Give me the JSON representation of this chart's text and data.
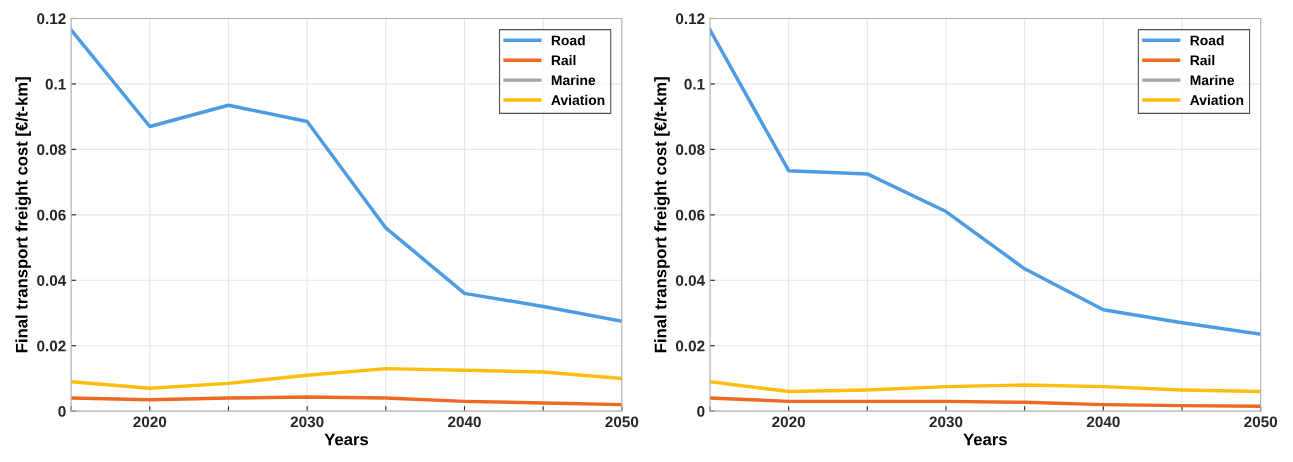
{
  "chart_data": [
    {
      "type": "line",
      "xlabel": "Years",
      "ylabel": "Final transport freight cost [€/t-km]",
      "x": [
        2015,
        2020,
        2025,
        2030,
        2035,
        2040,
        2045,
        2050
      ],
      "series": [
        {
          "name": "Road",
          "color": "#4d9be0",
          "values": [
            0.1165,
            0.087,
            0.0935,
            0.0885,
            0.056,
            0.036,
            0.032,
            0.0275
          ]
        },
        {
          "name": "Rail",
          "color": "#ee6a24",
          "values": [
            0.004,
            0.0035,
            0.004,
            0.0043,
            0.004,
            0.003,
            0.0025,
            0.002
          ]
        },
        {
          "name": "Marine",
          "color": "#a5a5a5",
          "values": [
            null,
            null,
            null,
            null,
            null,
            null,
            null,
            null
          ]
        },
        {
          "name": "Aviation",
          "color": "#fcbd0c",
          "values": [
            0.009,
            0.007,
            0.0085,
            0.011,
            0.013,
            0.0125,
            0.012,
            0.01
          ]
        }
      ],
      "xlim": [
        2015,
        2050
      ],
      "ylim": [
        0,
        0.12
      ],
      "xticks": [
        {
          "value": 2015,
          "label": null
        },
        2020,
        {
          "value": 2025,
          "label": null
        },
        2030,
        {
          "value": 2035,
          "label": null
        },
        2040,
        {
          "value": 2045,
          "label": null
        },
        2050
      ],
      "yticks": [
        0,
        0.02,
        0.04,
        0.06,
        0.08,
        0.1,
        0.12
      ],
      "grid": true,
      "legend": "top right",
      "marker": "none",
      "line_style": "solid"
    },
    {
      "type": "line",
      "xlabel": "Years",
      "ylabel": "Final transport freight cost [€/t-km]",
      "x": [
        2015,
        2020,
        2025,
        2030,
        2035,
        2040,
        2045,
        2050
      ],
      "series": [
        {
          "name": "Road",
          "color": "#4d9be0",
          "values": [
            0.1165,
            0.0735,
            0.0725,
            0.061,
            0.0435,
            0.031,
            0.027,
            0.0235
          ]
        },
        {
          "name": "Rail",
          "color": "#ee6a24",
          "values": [
            0.004,
            0.003,
            0.003,
            0.003,
            0.0027,
            0.002,
            0.0017,
            0.0015
          ]
        },
        {
          "name": "Marine",
          "color": "#a5a5a5",
          "values": [
            null,
            null,
            null,
            null,
            null,
            null,
            null,
            null
          ]
        },
        {
          "name": "Aviation",
          "color": "#fcbd0c",
          "values": [
            0.009,
            0.006,
            0.0065,
            0.0075,
            0.008,
            0.0075,
            0.0065,
            0.006
          ]
        }
      ],
      "xlim": [
        2015,
        2050
      ],
      "ylim": [
        0,
        0.12
      ],
      "xticks": [
        {
          "value": 2015,
          "label": null
        },
        2020,
        {
          "value": 2025,
          "label": null
        },
        2030,
        {
          "value": 2035,
          "label": null
        },
        2040,
        {
          "value": 2045,
          "label": null
        },
        2050
      ],
      "yticks": [
        0,
        0.02,
        0.04,
        0.06,
        0.08,
        0.1,
        0.12
      ],
      "grid": true,
      "legend": "top right",
      "marker": "none",
      "line_style": "solid"
    }
  ]
}
